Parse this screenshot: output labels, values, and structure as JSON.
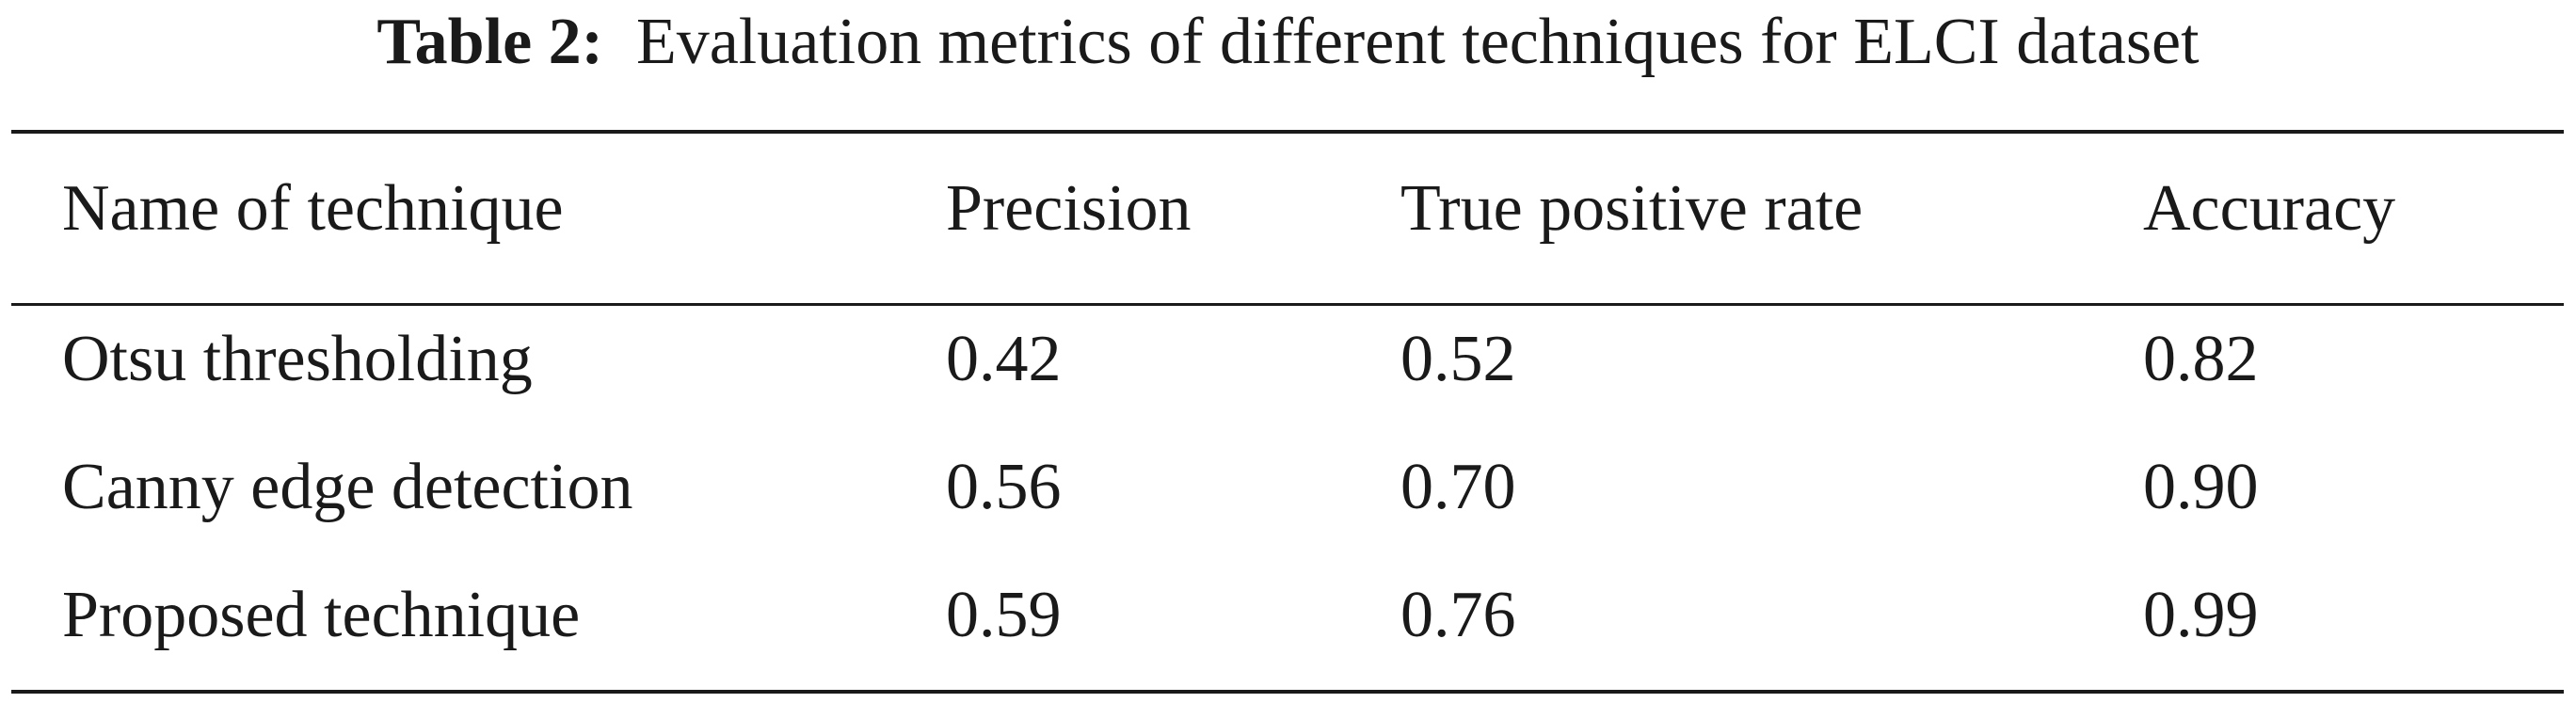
{
  "table": {
    "caption_label": "Table 2:",
    "caption_text": "Evaluation metrics of different techniques for ELCI dataset",
    "headers": [
      "Name of technique",
      "Precision",
      "True positive rate",
      "Accuracy"
    ],
    "rows": [
      [
        "Otsu thresholding",
        "0.42",
        "0.52",
        "0.82"
      ],
      [
        "Canny edge detection",
        "0.56",
        "0.70",
        "0.90"
      ],
      [
        "Proposed technique",
        "0.59",
        "0.76",
        "0.99"
      ]
    ]
  }
}
